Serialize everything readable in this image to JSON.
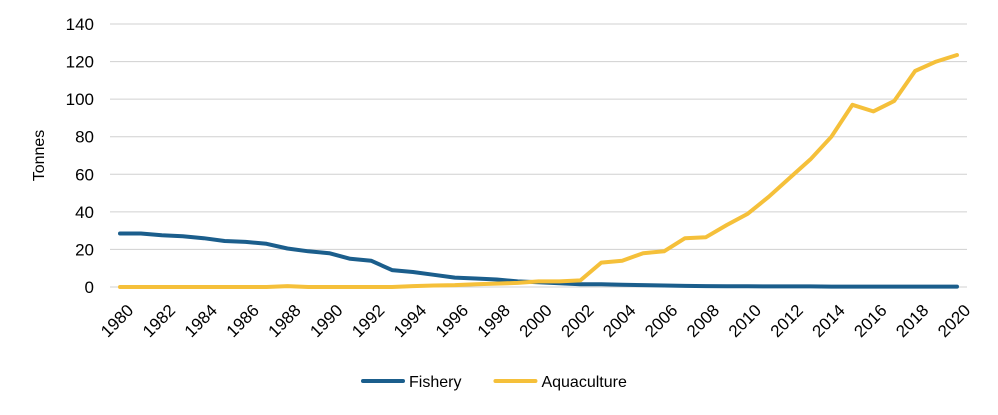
{
  "chart_data": {
    "type": "line",
    "title": "",
    "xlabel": "",
    "ylabel": "Tonnes",
    "ylim": [
      0,
      140
    ],
    "yticks": [
      0,
      20,
      40,
      60,
      80,
      100,
      120,
      140
    ],
    "grid": true,
    "legend_position": "bottom",
    "x": [
      1980,
      1981,
      1982,
      1983,
      1984,
      1985,
      1986,
      1987,
      1988,
      1989,
      1990,
      1991,
      1992,
      1993,
      1994,
      1995,
      1996,
      1997,
      1998,
      1999,
      2000,
      2001,
      2002,
      2003,
      2004,
      2005,
      2006,
      2007,
      2008,
      2009,
      2010,
      2011,
      2012,
      2013,
      2014,
      2015,
      2016,
      2017,
      2018,
      2019,
      2020
    ],
    "xtick_labels": [
      "1980",
      "1982",
      "1984",
      "1986",
      "1988",
      "1990",
      "1992",
      "1994",
      "1996",
      "1998",
      "2000",
      "2002",
      "2004",
      "2006",
      "2008",
      "2010",
      "2012",
      "2014",
      "2016",
      "2018",
      "2020"
    ],
    "series": [
      {
        "name": "Fishery",
        "color": "#1b5e8c",
        "values": [
          28.5,
          28.5,
          27.5,
          27,
          26,
          24.5,
          24,
          23,
          20.5,
          19,
          18,
          15,
          14,
          9,
          8,
          6.5,
          5,
          4.5,
          4,
          3,
          2.5,
          2,
          1.5,
          1.5,
          1.2,
          1,
          0.8,
          0.6,
          0.5,
          0.4,
          0.4,
          0.3,
          0.3,
          0.3,
          0.2,
          0.2,
          0.2,
          0.2,
          0.2,
          0.2,
          0.2
        ]
      },
      {
        "name": "Aquaculture",
        "color": "#f5c03a",
        "values": [
          0,
          0,
          0,
          0,
          0,
          0,
          0,
          0,
          0.5,
          0,
          0,
          0,
          0,
          0,
          0.5,
          0.8,
          1,
          1.5,
          1.8,
          2.2,
          3,
          3,
          3.5,
          13,
          14,
          18,
          19,
          26,
          26.5,
          33,
          39,
          48,
          58,
          68,
          80,
          97,
          93.5,
          99,
          115,
          120,
          123.5
        ]
      }
    ]
  }
}
